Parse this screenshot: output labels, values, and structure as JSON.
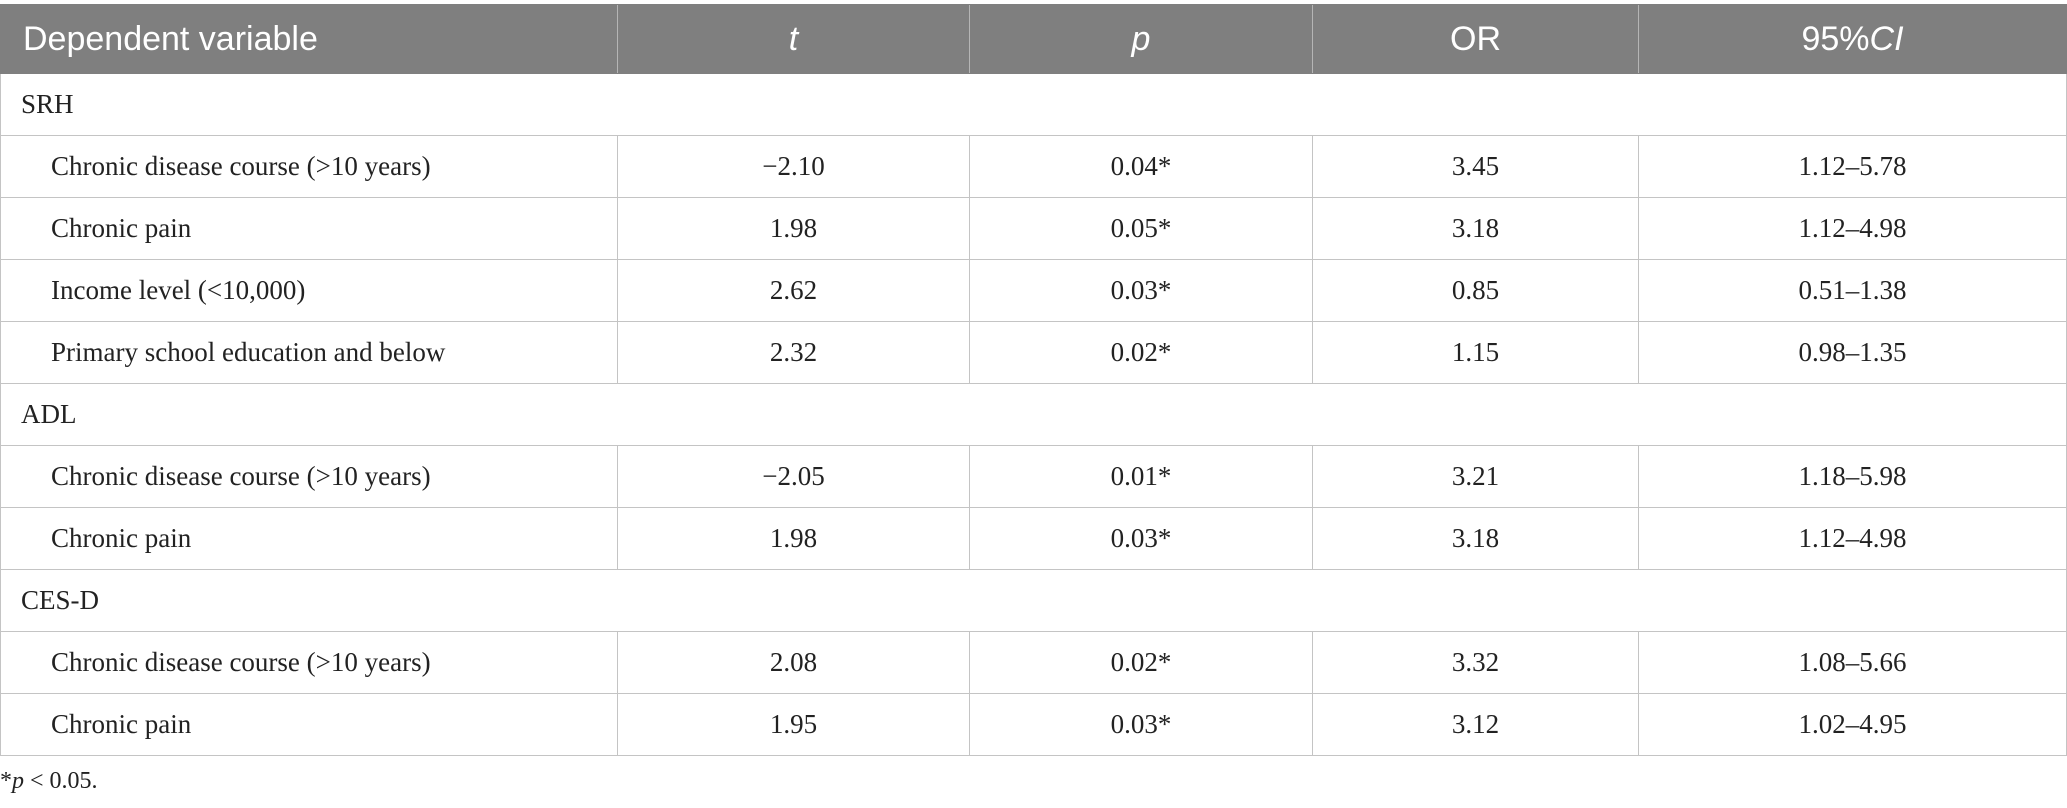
{
  "table": {
    "headers": {
      "dependent_variable": "Dependent variable",
      "t": "t",
      "p": "p",
      "or": "OR",
      "ci_prefix": "95%",
      "ci_suffix": "CI"
    },
    "groups": [
      {
        "name": "SRH",
        "rows": [
          {
            "label": "Chronic disease course (>10 years)",
            "t": "−2.10",
            "p": "0.04*",
            "or": "3.45",
            "ci": "1.12–5.78"
          },
          {
            "label": "Chronic pain",
            "t": "1.98",
            "p": "0.05*",
            "or": "3.18",
            "ci": "1.12–4.98"
          },
          {
            "label": "Income level (<10,000)",
            "t": "2.62",
            "p": "0.03*",
            "or": "0.85",
            "ci": "0.51–1.38"
          },
          {
            "label": "Primary school education and below",
            "t": "2.32",
            "p": "0.02*",
            "or": "1.15",
            "ci": "0.98–1.35"
          }
        ]
      },
      {
        "name": "ADL",
        "rows": [
          {
            "label": "Chronic disease course (>10 years)",
            "t": "−2.05",
            "p": "0.01*",
            "or": "3.21",
            "ci": "1.18–5.98"
          },
          {
            "label": "Chronic pain",
            "t": "1.98",
            "p": "0.03*",
            "or": "3.18",
            "ci": "1.12–4.98"
          }
        ]
      },
      {
        "name": "CES-D",
        "rows": [
          {
            "label": "Chronic disease course (>10 years)",
            "t": "2.08",
            "p": "0.02*",
            "or": "3.32",
            "ci": "1.08–5.66"
          },
          {
            "label": "Chronic pain",
            "t": "1.95",
            "p": "0.03*",
            "or": "3.12",
            "ci": "1.02–4.95"
          }
        ]
      }
    ]
  },
  "footnote": {
    "star": "*",
    "p": "p",
    "rest": " < 0.05."
  }
}
